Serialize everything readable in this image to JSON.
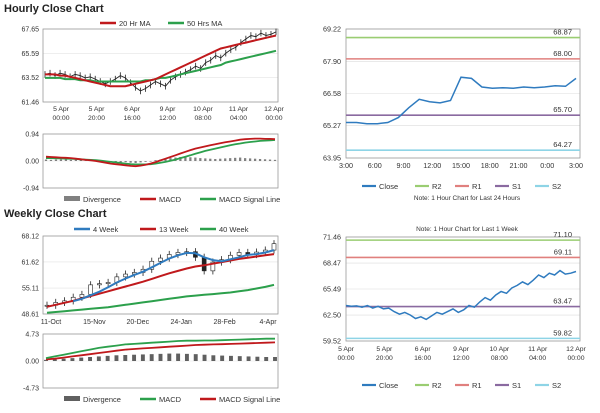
{
  "page": {
    "hourly_title": "Hourly Close Chart",
    "weekly_title": "Weekly Close Chart"
  },
  "chart_data": [
    {
      "id": "hourly_price",
      "type": "line",
      "legend": [
        {
          "label": "20 Hr MA",
          "color": "#c0191c"
        },
        {
          "label": "50 Hrs MA",
          "color": "#2ca04c"
        }
      ],
      "y_ticks": [
        "67.65",
        "65.59",
        "63.52",
        "61.46"
      ],
      "ylim": [
        61.46,
        67.65
      ],
      "x_labels": [
        [
          "5 Apr",
          "00:00"
        ],
        [
          "5 Apr",
          "20:00"
        ],
        [
          "6 Apr",
          "16:00"
        ],
        [
          "9 Apr",
          "12:00"
        ],
        [
          "10 Apr",
          "08:00"
        ],
        [
          "11 Apr",
          "04:00"
        ],
        [
          "12 Apr",
          "00:00"
        ]
      ],
      "close": [
        63.8,
        63.9,
        63.7,
        63.9,
        63.8,
        63.6,
        63.8,
        63.7,
        63.5,
        63.6,
        63.4,
        63.2,
        63.0,
        63.2,
        63.4,
        63.7,
        63.5,
        63.1,
        62.7,
        62.4,
        62.6,
        62.9,
        63.2,
        63.0,
        62.8,
        63.3,
        63.6,
        63.8,
        64.0,
        64.2,
        64.5,
        64.3,
        64.8,
        65.0,
        65.4,
        65.2,
        65.6,
        65.9,
        66.1,
        66.5,
        66.8,
        67.1,
        67.0,
        67.3,
        67.1,
        67.2,
        67.4
      ],
      "ma20": [
        63.8,
        63.8,
        63.8,
        63.7,
        63.7,
        63.6,
        63.5,
        63.4,
        63.3,
        63.2,
        63.1,
        63.0,
        62.9,
        62.8,
        62.8,
        62.8,
        62.8,
        62.9,
        63.0,
        63.1,
        63.2,
        63.3,
        63.4,
        63.6,
        63.8,
        64.0,
        64.2,
        64.4,
        64.6,
        64.8,
        65.0,
        65.2,
        65.4,
        65.6,
        65.8,
        66.0,
        66.1,
        66.2,
        66.3,
        66.4,
        66.5,
        66.6,
        66.7,
        66.8,
        66.9,
        67.0,
        67.1
      ],
      "ma50": [
        63.5,
        63.5,
        63.5,
        63.5,
        63.4,
        63.4,
        63.4,
        63.3,
        63.3,
        63.3,
        63.2,
        63.2,
        63.2,
        63.2,
        63.2,
        63.2,
        63.2,
        63.2,
        63.2,
        63.2,
        63.3,
        63.3,
        63.4,
        63.5,
        63.5,
        63.6,
        63.7,
        63.8,
        63.9,
        64.0,
        64.1,
        64.2,
        64.3,
        64.4,
        64.5,
        64.6,
        64.8,
        64.9,
        65.0,
        65.1,
        65.2,
        65.3,
        65.4,
        65.5,
        65.6,
        65.7,
        65.8
      ]
    },
    {
      "id": "hourly_macd",
      "type": "bar+line",
      "y_ticks": [
        "0.94",
        "0.00",
        "-0.94"
      ],
      "ylim": [
        -0.94,
        0.94
      ],
      "legend": [
        {
          "label": "Divergence",
          "color": "#808080"
        },
        {
          "label": "MACD",
          "color": "#c0191c"
        },
        {
          "label": "MACD Signal Line",
          "color": "#2ca04c"
        }
      ],
      "divergence": [
        0.05,
        0.04,
        0.05,
        0.06,
        0.05,
        0.04,
        0.05,
        0.04,
        0.03,
        0.02,
        0.01,
        0.0,
        -0.03,
        -0.05,
        -0.06,
        -0.05,
        -0.04,
        -0.06,
        -0.07,
        -0.05,
        -0.03,
        0.0,
        0.03,
        0.05,
        0.08,
        0.1,
        0.12,
        0.14,
        0.15,
        0.13,
        0.12,
        0.1,
        0.09,
        0.08,
        0.07,
        0.08,
        0.09,
        0.1,
        0.11,
        0.12,
        0.1,
        0.09,
        0.08,
        0.07,
        0.06,
        0.05,
        0.04
      ],
      "macd": [
        0.15,
        0.14,
        0.13,
        0.12,
        0.11,
        0.1,
        0.08,
        0.06,
        0.04,
        0.02,
        0.0,
        -0.03,
        -0.06,
        -0.09,
        -0.11,
        -0.13,
        -0.15,
        -0.17,
        -0.18,
        -0.16,
        -0.13,
        -0.09,
        -0.04,
        0.02,
        0.08,
        0.14,
        0.2,
        0.26,
        0.32,
        0.38,
        0.43,
        0.47,
        0.51,
        0.55,
        0.58,
        0.62,
        0.65,
        0.68,
        0.71,
        0.74,
        0.76,
        0.77,
        0.78,
        0.78,
        0.77,
        0.77,
        0.76
      ],
      "signal": [
        0.1,
        0.1,
        0.09,
        0.09,
        0.08,
        0.08,
        0.07,
        0.06,
        0.05,
        0.04,
        0.03,
        0.01,
        -0.01,
        -0.03,
        -0.05,
        -0.07,
        -0.09,
        -0.11,
        -0.12,
        -0.12,
        -0.12,
        -0.11,
        -0.09,
        -0.06,
        -0.03,
        0.01,
        0.05,
        0.1,
        0.15,
        0.2,
        0.25,
        0.3,
        0.35,
        0.39,
        0.43,
        0.47,
        0.51,
        0.55,
        0.58,
        0.61,
        0.64,
        0.66,
        0.68,
        0.7,
        0.71,
        0.72,
        0.73
      ]
    },
    {
      "id": "hourly_pivot",
      "type": "line",
      "y_ticks": [
        "69.22",
        "67.90",
        "66.58",
        "65.27",
        "63.95"
      ],
      "ylim": [
        63.95,
        69.22
      ],
      "x_labels": [
        "3:00",
        "6:00",
        "9:00",
        "12:00",
        "15:00",
        "18:00",
        "21:00",
        "0:00",
        "3:00"
      ],
      "close": [
        65.4,
        65.4,
        65.35,
        65.35,
        65.4,
        65.6,
        66.0,
        66.35,
        66.25,
        66.2,
        66.3,
        67.25,
        67.2,
        66.85,
        66.8,
        66.82,
        66.8,
        66.85,
        66.82,
        66.85,
        66.9,
        66.88,
        67.2
      ],
      "levels": [
        {
          "name": "R2",
          "value": 68.87,
          "label": "68.87",
          "color": "#9acd72"
        },
        {
          "name": "R1",
          "value": 68.0,
          "label": "68.00",
          "color": "#e0807e"
        },
        {
          "name": "S1",
          "value": 65.7,
          "label": "65.70",
          "color": "#8a6aa0"
        },
        {
          "name": "S2",
          "value": 64.27,
          "label": "64.27",
          "color": "#8ed4e6"
        }
      ],
      "legend": [
        {
          "label": "Close",
          "color": "#2f7bbf"
        },
        {
          "label": "R2",
          "color": "#9acd72"
        },
        {
          "label": "R1",
          "color": "#e0807e"
        },
        {
          "label": "S1",
          "color": "#8a6aa0"
        },
        {
          "label": "S2",
          "color": "#8ed4e6"
        }
      ],
      "note": "Note: 1 Hour Chart for Last 24 Hours"
    },
    {
      "id": "weekly_price",
      "type": "line",
      "legend": [
        {
          "label": "4 Week",
          "color": "#2f7bbf"
        },
        {
          "label": "13 Week",
          "color": "#c0191c"
        },
        {
          "label": "40 Week",
          "color": "#2ca04c"
        }
      ],
      "y_ticks": [
        "68.12",
        "61.62",
        "55.11",
        "48.61"
      ],
      "ylim": [
        48.61,
        68.12
      ],
      "x_labels": [
        "11-Oct",
        "15-Nov",
        "20-Dec",
        "24-Jan",
        "28-Feb",
        "4-Apr"
      ],
      "close": [
        50.8,
        51.5,
        51.9,
        52.8,
        53.5,
        55.9,
        56.2,
        56.5,
        57.9,
        58.6,
        59.0,
        59.8,
        61.8,
        62.6,
        63.5,
        64.0,
        64.2,
        62.8,
        59.4,
        61.6,
        62.2,
        63.3,
        64.0,
        63.5,
        64.1,
        64.6,
        66.2
      ],
      "wk4": [
        null,
        null,
        null,
        51.8,
        52.4,
        53.3,
        54.2,
        55.3,
        56.5,
        57.5,
        58.4,
        59.2,
        60.3,
        61.4,
        62.5,
        63.3,
        63.9,
        63.8,
        62.8,
        62.1,
        61.8,
        62.3,
        62.8,
        63.4,
        63.6,
        64.0,
        64.6
      ],
      "wk13": [
        50.4,
        50.9,
        51.4,
        51.9,
        52.5,
        53.1,
        53.7,
        54.3,
        54.9,
        55.5,
        56.1,
        56.7,
        57.4,
        58.1,
        58.8,
        59.4,
        60.0,
        60.5,
        60.8,
        61.2,
        61.6,
        62.0,
        62.4,
        62.7,
        63.0,
        63.3,
        63.6
      ],
      "wk40": [
        48.9,
        49.1,
        49.3,
        49.5,
        49.7,
        49.9,
        50.1,
        50.3,
        50.6,
        50.9,
        51.2,
        51.5,
        51.8,
        52.1,
        52.4,
        52.7,
        53.0,
        53.2,
        53.4,
        53.6,
        53.8,
        54.0,
        54.3,
        54.6,
        55.0,
        55.4,
        55.9
      ]
    },
    {
      "id": "weekly_macd",
      "type": "bar+line",
      "y_ticks": [
        "4.73",
        "0.00",
        "-4.73"
      ],
      "ylim": [
        -4.73,
        4.73
      ],
      "legend": [
        {
          "label": "Divergence",
          "color": "#606060"
        },
        {
          "label": "MACD",
          "color": "#2ca04c"
        },
        {
          "label": "MACD Signal Line",
          "color": "#c0191c"
        }
      ],
      "divergence": [
        0.2,
        0.3,
        0.4,
        0.5,
        0.6,
        0.7,
        0.8,
        0.9,
        1.0,
        1.05,
        1.1,
        1.15,
        1.2,
        1.25,
        1.3,
        1.3,
        1.25,
        1.2,
        1.1,
        1.0,
        0.95,
        0.9,
        0.85,
        0.8,
        0.75,
        0.7,
        0.7
      ],
      "macd": [
        0.5,
        0.8,
        1.1,
        1.4,
        1.7,
        2.0,
        2.3,
        2.5,
        2.7,
        2.9,
        3.0,
        3.1,
        3.2,
        3.3,
        3.4,
        3.5,
        3.55,
        3.55,
        3.6,
        3.6,
        3.65,
        3.7,
        3.75,
        3.8,
        3.85,
        3.9,
        3.9
      ],
      "signal": [
        0.3,
        0.4,
        0.6,
        0.8,
        1.0,
        1.2,
        1.4,
        1.6,
        1.8,
        2.0,
        2.1,
        2.2,
        2.3,
        2.4,
        2.5,
        2.6,
        2.7,
        2.8,
        2.85,
        2.9,
        2.95,
        3.0,
        3.05,
        3.1,
        3.15,
        3.2,
        3.25
      ]
    },
    {
      "id": "weekly_pivot",
      "type": "line",
      "y_ticks": [
        "71.46",
        "68.47",
        "65.49",
        "62.50",
        "59.52"
      ],
      "ylim": [
        59.52,
        71.46
      ],
      "x_labels": [
        [
          "5 Apr",
          "00:00"
        ],
        [
          "5 Apr",
          "20:00"
        ],
        [
          "6 Apr",
          "16:00"
        ],
        [
          "9 Apr",
          "12:00"
        ],
        [
          "10 Apr",
          "08:00"
        ],
        [
          "11 Apr",
          "04:00"
        ],
        [
          "12 Apr",
          "00:00"
        ]
      ],
      "close": [
        63.6,
        63.5,
        63.55,
        63.4,
        63.6,
        63.3,
        63.5,
        63.2,
        63.3,
        62.9,
        62.6,
        62.8,
        62.5,
        62.1,
        62.3,
        62.0,
        62.4,
        62.8,
        62.6,
        62.9,
        63.2,
        62.8,
        63.1,
        63.6,
        63.4,
        64.0,
        64.5,
        64.2,
        64.8,
        65.2,
        65.0,
        65.6,
        65.9,
        66.3,
        66.0,
        66.5,
        67.1,
        66.8,
        67.3,
        67.1,
        67.6,
        67.2,
        67.3,
        67.5
      ],
      "levels": [
        {
          "name": "R2",
          "value": 71.1,
          "label": "71.10",
          "color": "#9acd72"
        },
        {
          "name": "R1",
          "value": 69.11,
          "label": "69.11",
          "color": "#e0807e"
        },
        {
          "name": "S1",
          "value": 63.47,
          "label": "63.47",
          "color": "#8a6aa0"
        },
        {
          "name": "S2",
          "value": 59.82,
          "label": "59.82",
          "color": "#8ed4e6"
        }
      ],
      "legend": [
        {
          "label": "Close",
          "color": "#2f7bbf"
        },
        {
          "label": "R2",
          "color": "#9acd72"
        },
        {
          "label": "R1",
          "color": "#e0807e"
        },
        {
          "label": "S1",
          "color": "#8a6aa0"
        },
        {
          "label": "S2",
          "color": "#8ed4e6"
        }
      ],
      "note": "Note: 1 Hour Chart for Last 1 Week"
    }
  ]
}
